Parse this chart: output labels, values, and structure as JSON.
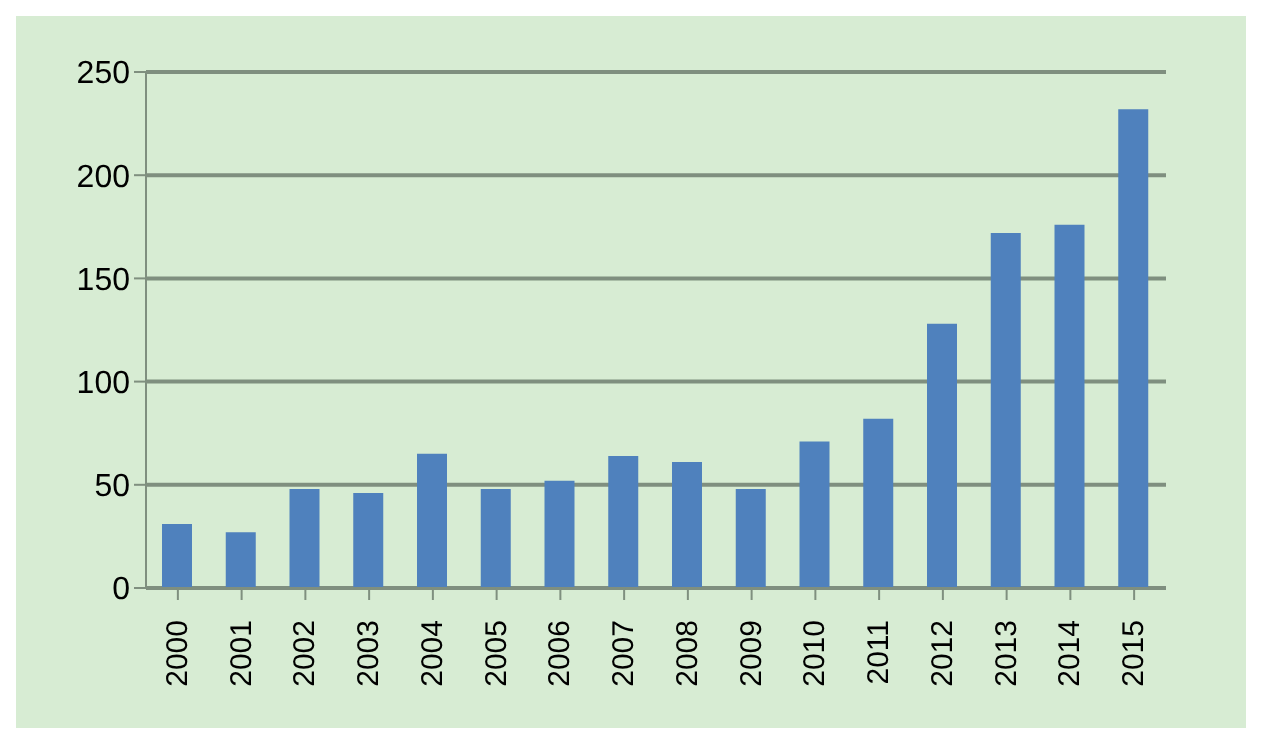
{
  "chart_data": {
    "type": "bar",
    "categories": [
      "2000",
      "2001",
      "2002",
      "2003",
      "2004",
      "2005",
      "2006",
      "2007",
      "2008",
      "2009",
      "2010",
      "2011",
      "2012",
      "2013",
      "2014",
      "2015"
    ],
    "values": [
      31,
      27,
      48,
      46,
      65,
      48,
      52,
      64,
      61,
      48,
      71,
      82,
      128,
      172,
      176,
      232
    ],
    "color": "#4f81bd",
    "ylim": [
      0,
      250
    ],
    "yticks": [
      0,
      50,
      100,
      150,
      200,
      250
    ],
    "grid": "y"
  }
}
